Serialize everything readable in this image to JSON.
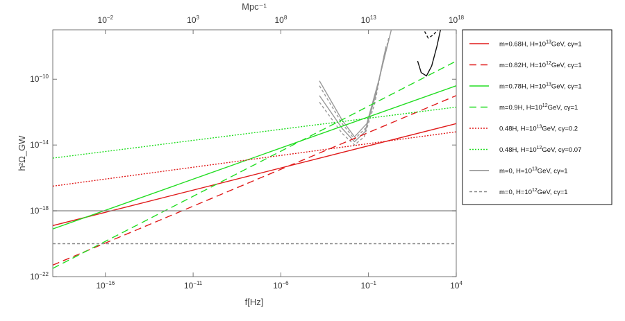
{
  "chart_data": {
    "type": "line",
    "xlabel": "f[Hz]",
    "ylabel": "h²Ω_GW",
    "top_axis_label": "Mpc⁻¹",
    "x_scale": "log10",
    "y_scale": "log10",
    "xlim_log10": [
      -19,
      4
    ],
    "ylim_log10": [
      -22,
      -7
    ],
    "x_ticks_log10": [
      -16,
      -11,
      -6,
      -1,
      4
    ],
    "y_ticks_log10": [
      -22,
      -18,
      -14,
      -10
    ],
    "top_ticks_log10": [
      -2,
      3,
      8,
      13,
      18
    ],
    "series": [
      {
        "name": "m=0.68H, H=10^13 GeV, cγ=1",
        "color": "#e01b1b",
        "dash": "solid",
        "points_log10": [
          [
            -19,
            -18.9
          ],
          [
            4,
            -12.7
          ]
        ]
      },
      {
        "name": "m=0.82H, H=10^12 GeV, cγ=1",
        "color": "#e01b1b",
        "dash": "long",
        "points_log10": [
          [
            -19,
            -21.3
          ],
          [
            4,
            -11.0
          ]
        ]
      },
      {
        "name": "m=0.78H, H=10^13 GeV, cγ=1",
        "color": "#22dd22",
        "dash": "solid",
        "points_log10": [
          [
            -19,
            -19.1
          ],
          [
            4,
            -10.4
          ]
        ]
      },
      {
        "name": "m=0.9H, H=10^12 GeV, cγ=1",
        "color": "#22dd22",
        "dash": "long",
        "points_log10": [
          [
            -19,
            -21.5
          ],
          [
            4,
            -8.9
          ]
        ]
      },
      {
        "name": "0.48H, H=10^13 GeV, cγ=0.2",
        "color": "#e01b1b",
        "dash": "dotted",
        "points_log10": [
          [
            -19,
            -16.5
          ],
          [
            4,
            -13.2
          ]
        ]
      },
      {
        "name": "0.48H, H=10^12 GeV, cγ=0.07",
        "color": "#22dd22",
        "dash": "dotted",
        "points_log10": [
          [
            -19,
            -14.8
          ],
          [
            4,
            -11.7
          ]
        ]
      },
      {
        "name": "m=0, H=10^13 GeV, cγ=1",
        "color": "#888888",
        "dash": "solid",
        "points_log10": [
          [
            -19,
            -18.0
          ],
          [
            4,
            -18.0
          ]
        ]
      },
      {
        "name": "m=0, H=10^12 GeV, cγ=1",
        "color": "#888888",
        "dash": "short",
        "points_log10": [
          [
            -19,
            -20.0
          ],
          [
            4,
            -20.0
          ]
        ]
      }
    ],
    "sensitivity_curves": [
      {
        "name": "gray-solid-1",
        "color": "#999999",
        "dash": "solid",
        "points_log10": [
          [
            -3.8,
            -10.1
          ],
          [
            -2.5,
            -12.5
          ],
          [
            -1.8,
            -13.5
          ],
          [
            -1.1,
            -12.7
          ],
          [
            -0.4,
            -10.0
          ],
          [
            0.3,
            -7.0
          ]
        ]
      },
      {
        "name": "gray-solid-2",
        "color": "#999999",
        "dash": "solid",
        "points_log10": [
          [
            -3.8,
            -11.0
          ],
          [
            -2.5,
            -13.0
          ],
          [
            -1.8,
            -13.8
          ],
          [
            -1.2,
            -13.2
          ],
          [
            -0.6,
            -11.0
          ],
          [
            0.0,
            -8.0
          ]
        ]
      },
      {
        "name": "gray-dashed-1",
        "color": "#999999",
        "dash": "short",
        "points_log10": [
          [
            -3.8,
            -10.4
          ],
          [
            -2.5,
            -12.7
          ],
          [
            -1.8,
            -13.65
          ],
          [
            -1.15,
            -12.95
          ],
          [
            -0.5,
            -10.5
          ],
          [
            0.15,
            -7.5
          ]
        ]
      },
      {
        "name": "gray-dashed-2",
        "color": "#999999",
        "dash": "short",
        "points_log10": [
          [
            -3.8,
            -11.4
          ],
          [
            -2.5,
            -13.3
          ],
          [
            -1.8,
            -14.0
          ],
          [
            -1.25,
            -13.5
          ],
          [
            -0.65,
            -11.5
          ],
          [
            -0.1,
            -8.5
          ]
        ]
      },
      {
        "name": "black-solid",
        "color": "#111111",
        "dash": "solid",
        "points_log10": [
          [
            1.8,
            -8.9
          ],
          [
            2.0,
            -9.6
          ],
          [
            2.3,
            -9.8
          ],
          [
            2.6,
            -9.2
          ],
          [
            2.9,
            -8.0
          ],
          [
            3.1,
            -7.0
          ]
        ]
      },
      {
        "name": "black-dashed",
        "color": "#111111",
        "dash": "short",
        "points_log10": [
          [
            2.2,
            -7.1
          ],
          [
            2.4,
            -7.5
          ],
          [
            2.7,
            -7.3
          ],
          [
            2.95,
            -7.0
          ]
        ]
      }
    ],
    "legend_position": "right"
  },
  "legend_items": [
    {
      "label": "m=0.68H, H=10",
      "sup": "13",
      "tail": "GeV, cγ=1"
    },
    {
      "label": "m=0.82H, H=10",
      "sup": "12",
      "tail": "GeV, cγ=1"
    },
    {
      "label": "m=0.78H, H=10",
      "sup": "13",
      "tail": "GeV, cγ=1"
    },
    {
      "label": "m=0.9H, H=10",
      "sup": "12",
      "tail": "GeV, cγ=1"
    },
    {
      "label": "0.48H, H=10",
      "sup": "13",
      "tail": "GeV, cγ=0.2"
    },
    {
      "label": "0.48H, H=10",
      "sup": "12",
      "tail": "GeV, cγ=0.07"
    },
    {
      "label": "m=0, H=10",
      "sup": "13",
      "tail": "GeV, cγ=1"
    },
    {
      "label": "m=0, H=10",
      "sup": "12",
      "tail": "GeV, cγ=1"
    }
  ]
}
